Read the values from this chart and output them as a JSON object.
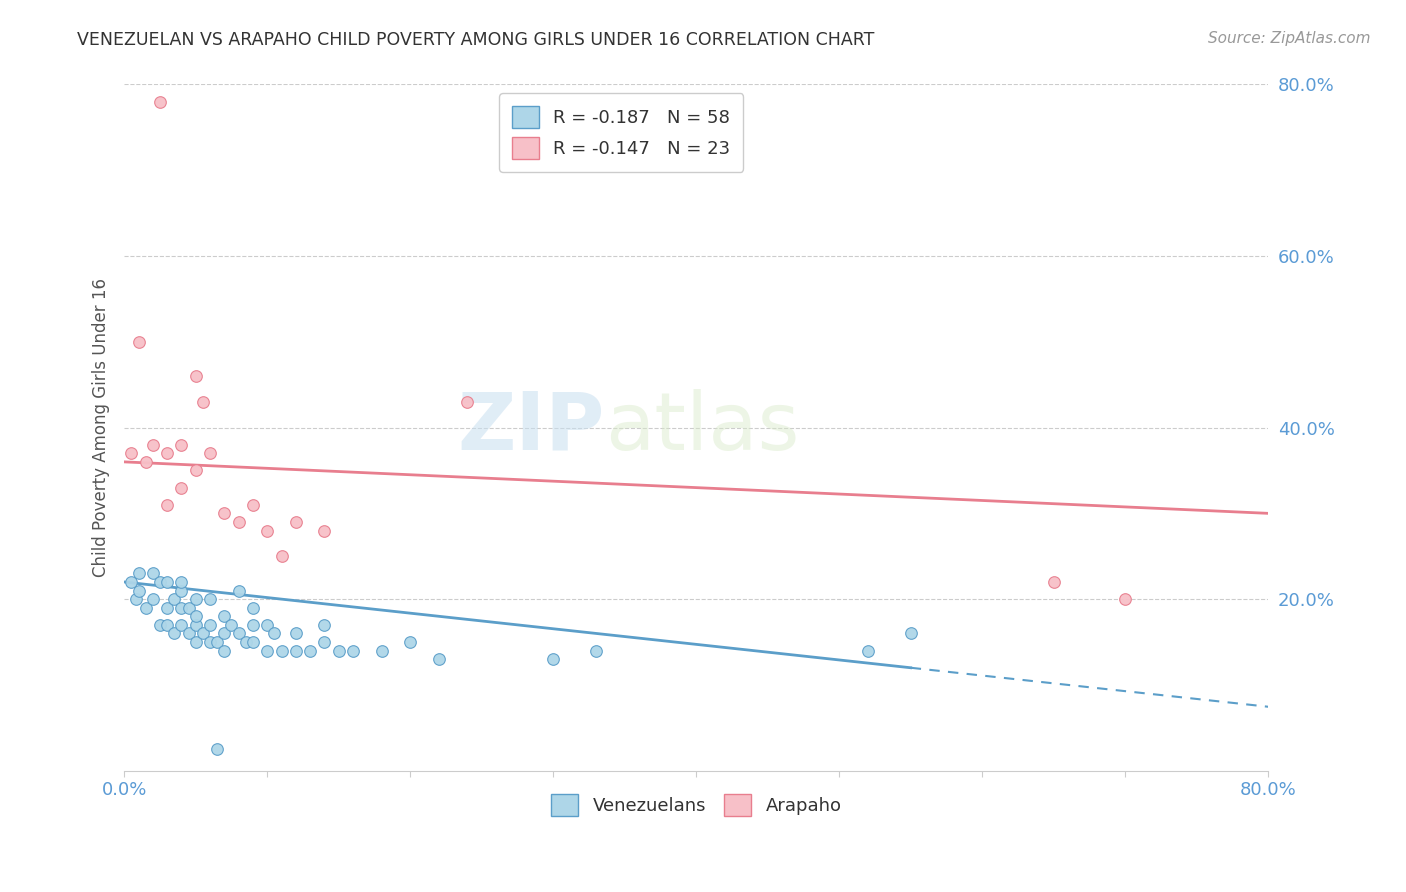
{
  "title": "VENEZUELAN VS ARAPAHO CHILD POVERTY AMONG GIRLS UNDER 16 CORRELATION CHART",
  "source": "Source: ZipAtlas.com",
  "ylabel": "Child Poverty Among Girls Under 16",
  "xlim": [
    0.0,
    0.8
  ],
  "ylim": [
    0.0,
    0.8
  ],
  "background_color": "#ffffff",
  "watermark_zip": "ZIP",
  "watermark_atlas": "atlas",
  "venezuelan_color": "#AED6E8",
  "venezuelan_edge_color": "#5B9EC9",
  "arapaho_color": "#F7C0C8",
  "arapaho_edge_color": "#E87E8E",
  "venezuelan_line_color": "#5B9EC9",
  "arapaho_line_color": "#E87E8E",
  "R_venezuelan": -0.187,
  "N_venezuelan": 58,
  "R_arapaho": -0.147,
  "N_arapaho": 23,
  "tick_color": "#5B9BD5",
  "grid_color": "#cccccc",
  "title_color": "#333333",
  "source_color": "#999999",
  "ylabel_color": "#555555",
  "venezuelan_line_solid_end": 0.55,
  "venezuelan_line_dash_end": 0.8,
  "arapaho_line_start": 0.0,
  "arapaho_line_end": 0.8,
  "venezuelan_x": [
    0.005,
    0.008,
    0.01,
    0.01,
    0.015,
    0.02,
    0.02,
    0.025,
    0.025,
    0.03,
    0.03,
    0.03,
    0.035,
    0.035,
    0.04,
    0.04,
    0.04,
    0.04,
    0.045,
    0.045,
    0.05,
    0.05,
    0.05,
    0.05,
    0.055,
    0.06,
    0.06,
    0.06,
    0.065,
    0.07,
    0.07,
    0.07,
    0.075,
    0.08,
    0.08,
    0.085,
    0.09,
    0.09,
    0.09,
    0.1,
    0.1,
    0.105,
    0.11,
    0.12,
    0.12,
    0.13,
    0.14,
    0.14,
    0.15,
    0.16,
    0.18,
    0.2,
    0.22,
    0.3,
    0.33,
    0.52,
    0.55,
    0.065
  ],
  "venezuelan_y": [
    0.22,
    0.2,
    0.21,
    0.23,
    0.19,
    0.2,
    0.23,
    0.17,
    0.22,
    0.17,
    0.19,
    0.22,
    0.16,
    0.2,
    0.17,
    0.19,
    0.21,
    0.22,
    0.16,
    0.19,
    0.15,
    0.17,
    0.18,
    0.2,
    0.16,
    0.15,
    0.17,
    0.2,
    0.15,
    0.14,
    0.16,
    0.18,
    0.17,
    0.16,
    0.21,
    0.15,
    0.15,
    0.17,
    0.19,
    0.14,
    0.17,
    0.16,
    0.14,
    0.14,
    0.16,
    0.14,
    0.15,
    0.17,
    0.14,
    0.14,
    0.14,
    0.15,
    0.13,
    0.13,
    0.14,
    0.14,
    0.16,
    0.025
  ],
  "arapaho_x": [
    0.005,
    0.01,
    0.015,
    0.02,
    0.03,
    0.03,
    0.04,
    0.04,
    0.05,
    0.05,
    0.06,
    0.07,
    0.08,
    0.09,
    0.1,
    0.11,
    0.12,
    0.14,
    0.24,
    0.65,
    0.7,
    0.055,
    0.025
  ],
  "arapaho_y": [
    0.37,
    0.5,
    0.36,
    0.38,
    0.31,
    0.37,
    0.33,
    0.38,
    0.35,
    0.46,
    0.37,
    0.3,
    0.29,
    0.31,
    0.28,
    0.25,
    0.29,
    0.28,
    0.43,
    0.22,
    0.2,
    0.43,
    0.78
  ]
}
